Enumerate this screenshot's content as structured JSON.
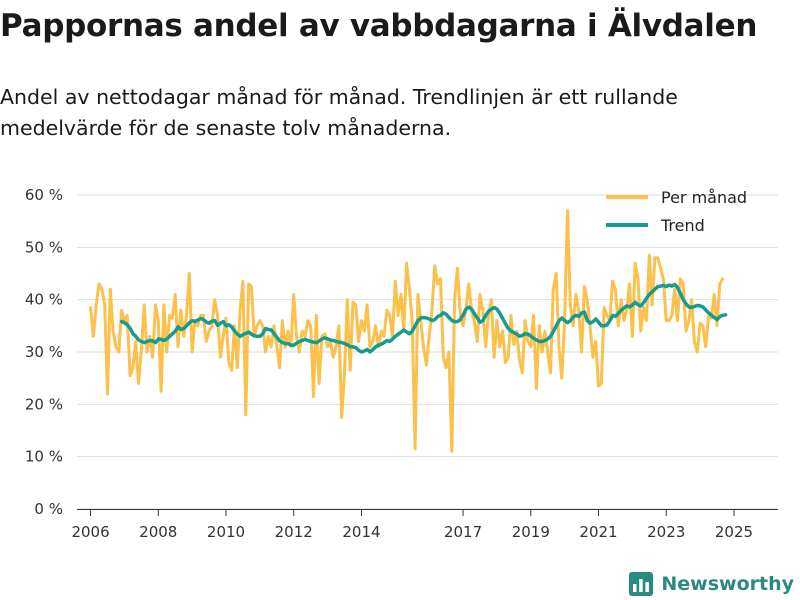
{
  "title": "Pappornas andel av vabbdagarna i Älvdalen",
  "subtitle": "Andel av nettodagar månad för månad. Trendlinjen är ett rullande medelvärde för de senaste tolv månaderna.",
  "brand": {
    "name": "Newsworthy",
    "color": "#2a8a82"
  },
  "chart_data": {
    "type": "line",
    "title": "Pappornas andel av vabbdagarna i Älvdalen",
    "xlabel": "",
    "ylabel": "",
    "xlim": [
      2005.6,
      2026.3
    ],
    "ylim": [
      0,
      60
    ],
    "y_ticks": [
      0,
      10,
      20,
      30,
      40,
      50,
      60
    ],
    "y_tick_labels": [
      "0 %",
      "10 %",
      "20 %",
      "30 %",
      "40 %",
      "50 %",
      "60 %"
    ],
    "x_ticks": [
      2006,
      2008,
      2010,
      2012,
      2014,
      2017,
      2019,
      2021,
      2023,
      2025
    ],
    "x_tick_labels": [
      "2006",
      "2008",
      "2010",
      "2012",
      "2014",
      "2017",
      "2019",
      "2021",
      "2023",
      "2025"
    ],
    "grid": "horizontal",
    "legend_position": "top-right",
    "series": [
      {
        "name": "Per månad",
        "color": "#fcc04c",
        "x_start": 2006.0,
        "step": 0.08333,
        "values": [
          38.5,
          33,
          39,
          43,
          42,
          39,
          22,
          42,
          34,
          31,
          30,
          38,
          36,
          37,
          25.5,
          27,
          32,
          24,
          30,
          39,
          30,
          33,
          29,
          39,
          36,
          22.5,
          39,
          30,
          37,
          36.5,
          41,
          31,
          38,
          33,
          37,
          45,
          30,
          36,
          35,
          37,
          37,
          32,
          34,
          35,
          40,
          37,
          29,
          33,
          36.5,
          28,
          26.5,
          35,
          27,
          38,
          43.5,
          18,
          43,
          42.5,
          33,
          35,
          36,
          35,
          30,
          33,
          31,
          35,
          31,
          27,
          36,
          31,
          34,
          31,
          41,
          33,
          30,
          34,
          33,
          36,
          35,
          21.5,
          37,
          24,
          33,
          33.5,
          31,
          32,
          29,
          31,
          35,
          17.5,
          26,
          40,
          26.5,
          39.5,
          39,
          32,
          36,
          34,
          39,
          31,
          32,
          35,
          31,
          34,
          33,
          38,
          37,
          33,
          43.5,
          37,
          41,
          34,
          47,
          42,
          36,
          11.5,
          41,
          36,
          31,
          27.5,
          33,
          38,
          46.5,
          43,
          44,
          29,
          27,
          30,
          11,
          40,
          46,
          37.5,
          35,
          38,
          43,
          38,
          36,
          32,
          41,
          38,
          31,
          37,
          40,
          29,
          36,
          31,
          34,
          28,
          29,
          37,
          31.5,
          34,
          28.5,
          26,
          36,
          32,
          31,
          37,
          23,
          35,
          30,
          34,
          30,
          26,
          42,
          45,
          31,
          25,
          36,
          57,
          39,
          35,
          41,
          38,
          30,
          42.5,
          40,
          35,
          29,
          32,
          23.5,
          24,
          38.5,
          37,
          36,
          43.5,
          42,
          35,
          40,
          36,
          38,
          43,
          33,
          47,
          44,
          34,
          38.5,
          36,
          48.5,
          39,
          48,
          48,
          46,
          44,
          36,
          36,
          37,
          42,
          36,
          44,
          43,
          34,
          36,
          40,
          32,
          30,
          35.5,
          35,
          31,
          37,
          36.5,
          41,
          35,
          43,
          44
        ]
      },
      {
        "name": "Trend",
        "color": "#169b8e",
        "x_start": 2006.92,
        "step": 0.08333,
        "values": [
          35.8,
          35.6,
          35.2,
          34.5,
          33.5,
          33,
          32.3,
          32,
          31.8,
          32,
          32.2,
          32.1,
          31.8,
          32.5,
          32.4,
          32.2,
          32.5,
          33,
          33.5,
          34,
          34.8,
          34.3,
          34.5,
          35,
          35.6,
          36,
          35.8,
          36.1,
          36.4,
          36.2,
          35.7,
          35.5,
          35.9,
          36,
          35.1,
          35.5,
          35.8,
          35,
          35.2,
          34.8,
          34,
          33.4,
          33,
          33.3,
          33.6,
          33.8,
          33.4,
          33.1,
          33,
          33,
          33.5,
          34.5,
          34.3,
          34.2,
          33.5,
          32.8,
          32.1,
          31.8,
          31.6,
          31.6,
          31.3,
          31.3,
          31.7,
          32.0,
          32.2,
          32.4,
          32.2,
          32.0,
          31.9,
          31.8,
          32.1,
          32.5,
          32.7,
          32.5,
          32.3,
          32.2,
          32.0,
          31.9,
          31.8,
          31.6,
          31.4,
          31.0,
          31.0,
          30.8,
          30.3,
          30.0,
          30.2,
          30.5,
          30.0,
          30.5,
          31.0,
          31.3,
          31.5,
          31.8,
          32.2,
          32.0,
          32.5,
          33.0,
          33.4,
          33.8,
          34.2,
          33.8,
          33.5,
          34.0,
          35.0,
          36.0,
          36.5,
          36.6,
          36.5,
          36.3,
          36.0,
          36.2,
          36.8,
          37.0,
          37.5,
          37.2,
          36.6,
          36.0,
          35.8,
          35.8,
          36.2,
          37.1,
          38.2,
          38.6,
          38.2,
          37.3,
          36.5,
          35.7,
          36.0,
          37.0,
          37.8,
          38.2,
          38.5,
          38.2,
          37.4,
          36.4,
          35.4,
          34.5,
          34.0,
          33.7,
          33.4,
          33.0,
          33.2,
          33.5,
          33.4,
          33.0,
          32.6,
          32.3,
          32.0,
          32.0,
          32.2,
          32.5,
          33.0,
          34.0,
          35.0,
          36.0,
          36.5,
          36.0,
          35.6,
          36.0,
          36.7,
          37.0,
          36.8,
          37.5,
          37.6,
          36.0,
          35.5,
          35.8,
          36.3,
          35.7,
          35.0,
          35.0,
          35.2,
          36.0,
          37.0,
          36.8,
          37.4,
          38.0,
          38.4,
          38.8,
          38.6,
          39.0,
          39.5,
          39.0,
          38.8,
          39.5,
          40.3,
          41.0,
          41.5,
          42.0,
          42.5,
          42.6,
          42.7,
          42.5,
          42.8,
          42.6,
          42.9,
          42.3,
          41.2,
          40.0,
          39.2,
          38.6,
          38.5,
          38.7,
          38.9,
          38.8,
          38.6,
          38.0,
          37.5,
          37.0,
          36.6,
          36.2,
          36.8,
          37.0,
          37.1
        ]
      }
    ]
  }
}
